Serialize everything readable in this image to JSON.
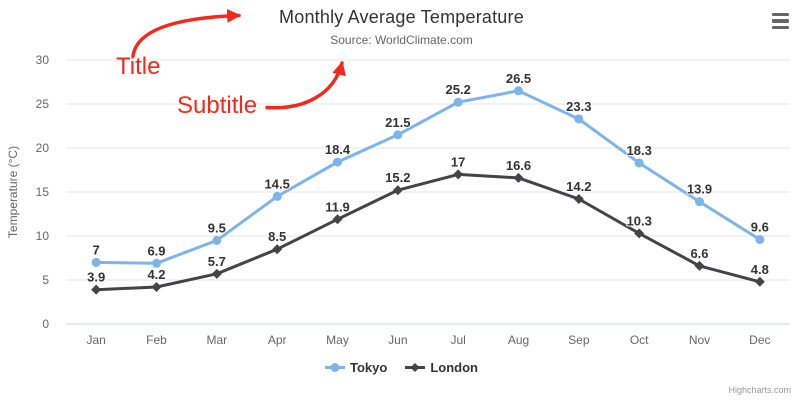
{
  "header": {
    "title": "Monthly Average Temperature",
    "subtitle": "Source: WorldClimate.com"
  },
  "chart_data": {
    "type": "line",
    "categories": [
      "Jan",
      "Feb",
      "Mar",
      "Apr",
      "May",
      "Jun",
      "Jul",
      "Aug",
      "Sep",
      "Oct",
      "Nov",
      "Dec"
    ],
    "series": [
      {
        "name": "Tokyo",
        "color": "#7cb5ec",
        "marker": "circle",
        "values": [
          7,
          6.9,
          9.5,
          14.5,
          18.4,
          21.5,
          25.2,
          26.5,
          23.3,
          18.3,
          13.9,
          9.6
        ]
      },
      {
        "name": "London",
        "color": "#434348",
        "marker": "diamond",
        "values": [
          3.9,
          4.2,
          5.7,
          8.5,
          11.9,
          15.2,
          17,
          16.6,
          14.2,
          10.3,
          6.6,
          4.8
        ]
      }
    ],
    "title": "Monthly Average Temperature",
    "subtitle": "Source: WorldClimate.com",
    "xlabel": "",
    "ylabel": "Temperature (°C)",
    "ylim": [
      0,
      30
    ],
    "ytick_step": 5,
    "yticks": [
      0,
      5,
      10,
      15,
      20,
      25,
      30
    ],
    "grid": true,
    "data_labels": true,
    "legend_position": "bottom"
  },
  "annotations": {
    "title_label": "Title",
    "subtitle_label": "Subtitle",
    "color": "#f4291c"
  },
  "credits": "Highcharts.com",
  "menu_icon": "hamburger-icon",
  "colors": {
    "grid": "#e6e6e6",
    "axis_line": "#ccd6eb",
    "axis_text": "#666666",
    "title_text": "#333333",
    "subtitle_text": "#666666",
    "legend_text": "#333333",
    "credits_text": "#999999"
  }
}
